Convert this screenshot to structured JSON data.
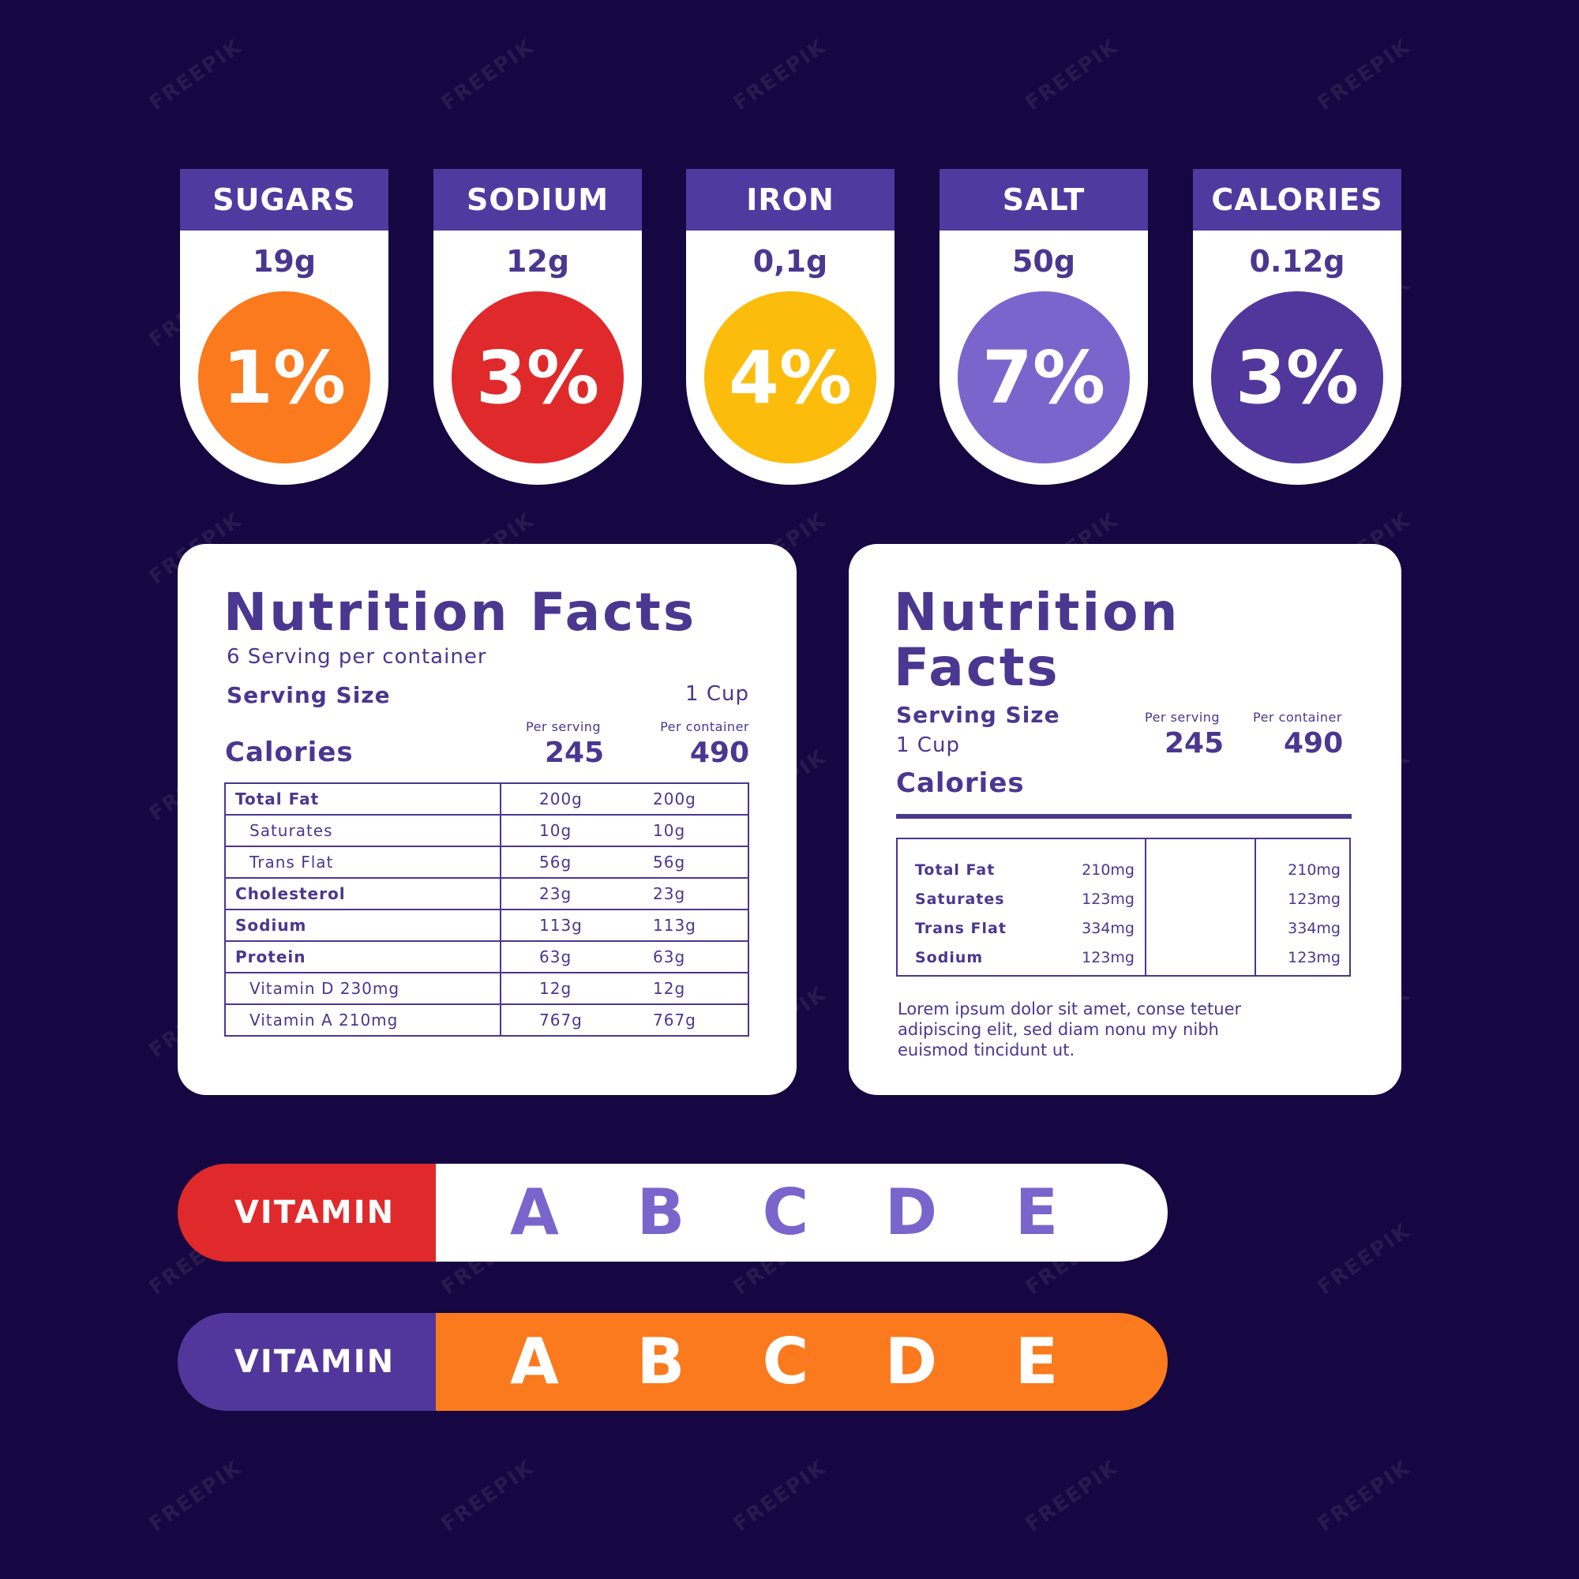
{
  "watermark": "FREEPIK",
  "colors": {
    "background": "#160641",
    "header_purple": "#4f3a9f",
    "text_purple": "#4a3790",
    "orange": "#fb7a1d",
    "red": "#e0292a",
    "yellow": "#fcbc0b",
    "lavender": "#7a65cc",
    "violet": "#51379b"
  },
  "badges": [
    {
      "label": "SUGARS",
      "amount": "19g",
      "percent": "1%",
      "color": "#fb7a1d"
    },
    {
      "label": "SODIUM",
      "amount": "12g",
      "percent": "3%",
      "color": "#e0292a"
    },
    {
      "label": "IRON",
      "amount": "0,1g",
      "percent": "4%",
      "color": "#fcbc0b"
    },
    {
      "label": "SALT",
      "amount": "50g",
      "percent": "7%",
      "color": "#7a65cc"
    },
    {
      "label": "CALORIES",
      "amount": "0.12g",
      "percent": "3%",
      "color": "#51379b"
    }
  ],
  "card1": {
    "title": "Nutrition Facts",
    "servings": "6 Serving per container",
    "serving_size_label": "Serving Size",
    "serving_size_value": "1 Cup",
    "per_serving_label": "Per serving",
    "per_container_label": "Per container",
    "calories_label": "Calories",
    "calories_per_serving": "245",
    "calories_per_container": "490",
    "rows": [
      {
        "label": "Total Fat",
        "v1": "200g",
        "v2": "200g",
        "bold": true
      },
      {
        "label": "Saturates",
        "v1": "10g",
        "v2": "10g",
        "bold": false
      },
      {
        "label": "Trans Flat",
        "v1": "56g",
        "v2": "56g",
        "bold": false
      },
      {
        "label": "Cholesterol",
        "v1": "23g",
        "v2": "23g",
        "bold": true
      },
      {
        "label": "Sodium",
        "v1": "113g",
        "v2": "113g",
        "bold": true
      },
      {
        "label": "Protein",
        "v1": "63g",
        "v2": "63g",
        "bold": true
      },
      {
        "label": "Vitamin D 230mg",
        "v1": "12g",
        "v2": "12g",
        "bold": false
      },
      {
        "label": "Vitamin A 210mg",
        "v1": "767g",
        "v2": "767g",
        "bold": false
      }
    ]
  },
  "card2": {
    "title_line1": "Nutrition",
    "title_line2": "Facts",
    "serving_size_label": "Serving Size",
    "serving_size_value": "1 Cup",
    "calories_label": "Calories",
    "per_serving_label": "Per serving",
    "per_container_label": "Per container",
    "calories_per_serving": "245",
    "calories_per_container": "490",
    "rows": [
      {
        "label": "Total Fat",
        "v1": "210mg",
        "v2": "210mg"
      },
      {
        "label": "Saturates",
        "v1": "123mg",
        "v2": "123mg"
      },
      {
        "label": "Trans Flat",
        "v1": "334mg",
        "v2": "334mg"
      },
      {
        "label": "Sodium",
        "v1": "123mg",
        "v2": "123mg"
      }
    ],
    "lorem_line1": "Lorem ipsum dolor sit amet, conse tetuer",
    "lorem_line2": "adipiscing elit, sed diam nonu my nibh",
    "lorem_line3": "euismod tincidunt ut."
  },
  "vitamin_bars": [
    {
      "label": "VITAMIN",
      "letters": [
        "A",
        "B",
        "C",
        "D",
        "E"
      ],
      "label_bg": "#e0292a",
      "body_bg": "#ffffff",
      "letter_color": "#7a65cc"
    },
    {
      "label": "VITAMIN",
      "letters": [
        "A",
        "B",
        "C",
        "D",
        "E"
      ],
      "label_bg": "#51379b",
      "body_bg": "#fb7a1d",
      "letter_color": "#ffffff"
    }
  ]
}
